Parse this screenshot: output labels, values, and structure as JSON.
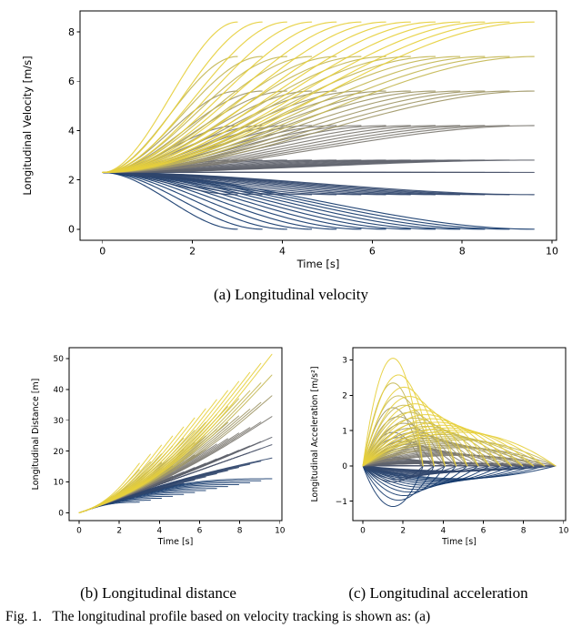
{
  "figure": {
    "subcaption_a": "(a) Longitudinal velocity",
    "subcaption_b": "(b) Longitudinal distance",
    "subcaption_c": "(c) Longitudinal acceleration",
    "fig_caption": "Fig. 1.   The longitudinal profile based on velocity tracking is shown as: (a)"
  },
  "chart_data": [
    {
      "id": "velocity",
      "type": "line",
      "title": "",
      "xlabel": "Time [s]",
      "ylabel": "Longitudinal Velocity [m/s]",
      "xlim": [
        -0.5,
        10.1
      ],
      "ylim": [
        -0.45,
        8.85
      ],
      "xticks": [
        0,
        2,
        4,
        6,
        8,
        10
      ],
      "yticks": [
        0,
        2,
        4,
        6,
        8
      ],
      "grid": false,
      "legend": "none",
      "description": "Fan of velocity-tracking curves starting at 2.3 m/s converging to each target velocity between t=3 s and t=9.6 s"
    },
    {
      "id": "distance",
      "type": "line",
      "title": "",
      "xlabel": "Time [s]",
      "ylabel": "Longitudinal Distance [m]",
      "xlim": [
        -0.5,
        10.1
      ],
      "ylim": [
        -2.5,
        53.5
      ],
      "xticks": [
        0,
        2,
        4,
        6,
        8,
        10
      ],
      "yticks": [
        0,
        10,
        20,
        30,
        40,
        50
      ],
      "grid": false,
      "legend": "none",
      "max_distance": 51.4,
      "description": "Integrated distance of each velocity profile; distances fan from 0 m up to about 51 m at t=9.6 s"
    },
    {
      "id": "accel",
      "type": "line",
      "title": "",
      "xlabel": "Time [s]",
      "ylabel": "Longitudinal Acceleration [m/s²]",
      "xlim": [
        -0.5,
        10.1
      ],
      "ylim": [
        -1.55,
        3.35
      ],
      "xticks": [
        0,
        2,
        4,
        6,
        8,
        10
      ],
      "yticks": [
        -1,
        0,
        1,
        2,
        3
      ],
      "grid": false,
      "legend": "none",
      "peak_acceleration": 3.05,
      "min_acceleration": -1.15,
      "description": "Derivative of each velocity profile; yellow curves peak near +3 m/s2 around t=1.5 s, blue curves dip near -1.2 m/s2, all returning to 0"
    }
  ],
  "chart_model": {
    "initial_velocity": 2.3,
    "target_velocities": [
      0,
      1.4,
      2.3,
      2.8,
      4.2,
      5.6,
      7.0,
      8.4
    ],
    "colors": [
      "#15396c",
      "#31476d",
      "#4d566c",
      "#5f636c",
      "#7d7a72",
      "#a09767",
      "#c4b754",
      "#e6cf3c"
    ],
    "colormap": "cividis",
    "ramp_times": [
      3.0,
      3.55,
      4.1,
      4.65,
      5.2,
      5.75,
      6.3,
      6.85,
      7.4,
      7.95,
      8.5,
      9.05,
      9.6
    ],
    "easing": "smoothstep"
  }
}
